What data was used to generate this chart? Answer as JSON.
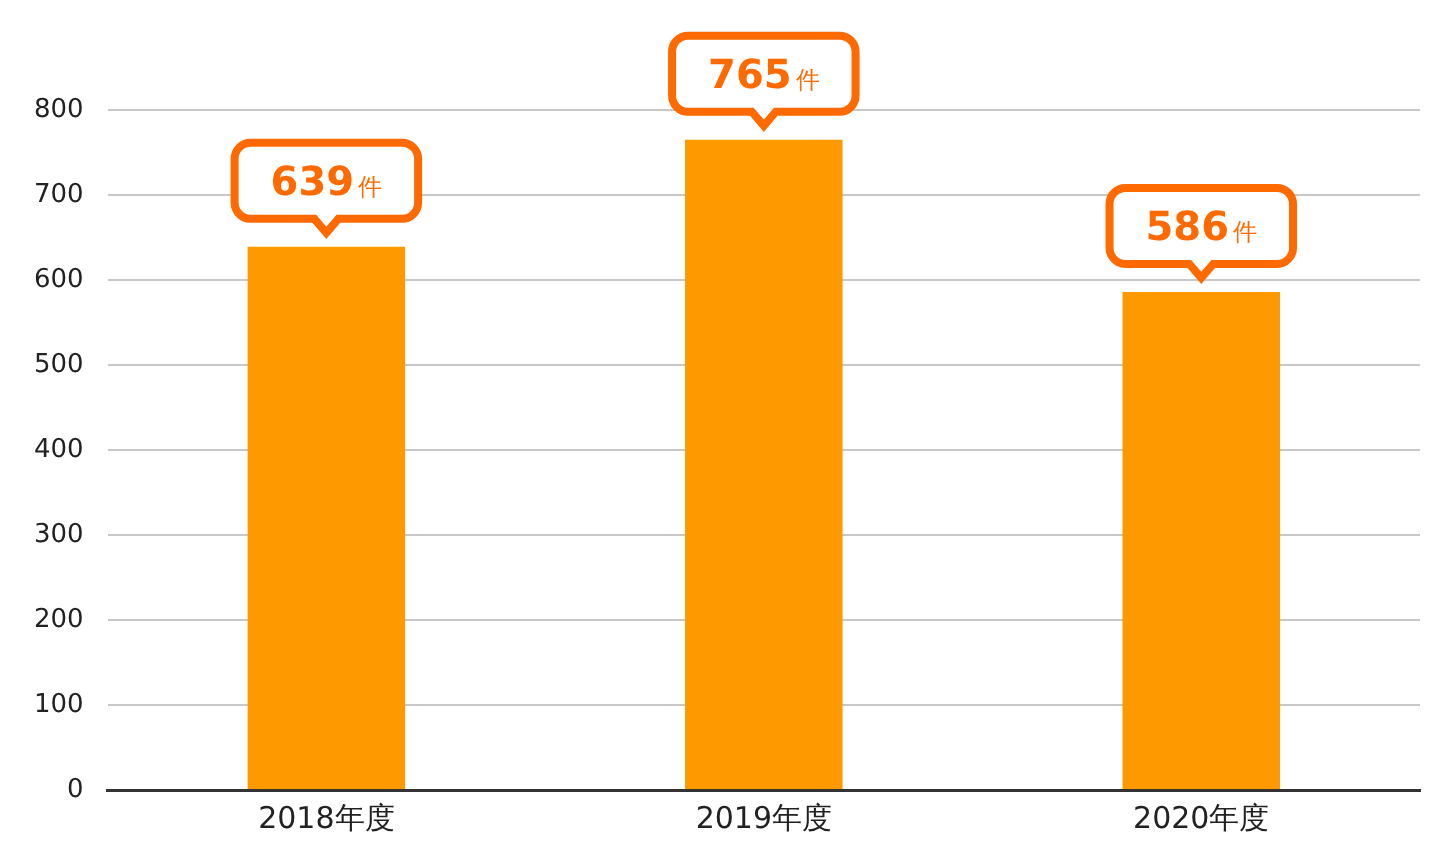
{
  "chart_data": {
    "type": "bar",
    "categories": [
      "2018年度",
      "2019年度",
      "2020年度"
    ],
    "values": [
      639,
      765,
      586
    ],
    "color": "#ff9900",
    "value_labels": [
      "639件",
      "765件",
      "586件"
    ],
    "ylim": [
      0,
      800
    ],
    "yticks": [
      0,
      100,
      200,
      300,
      400,
      500,
      600,
      700,
      800
    ],
    "grid": "y",
    "legend": false
  }
}
